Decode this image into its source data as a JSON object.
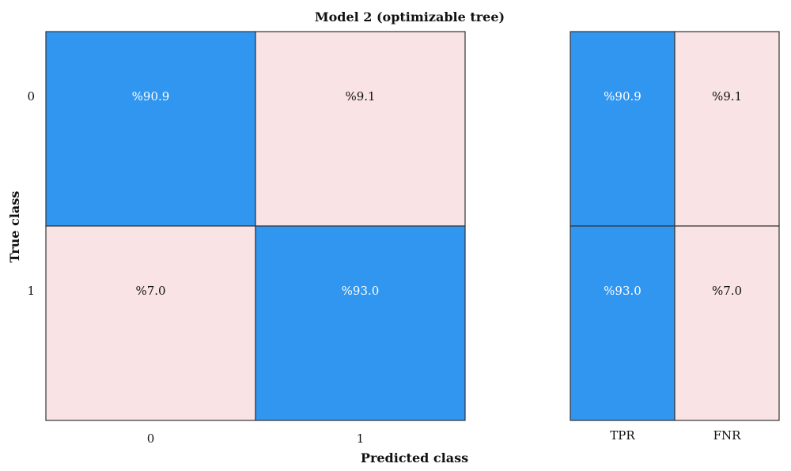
{
  "chart_data": {
    "type": "heatmap",
    "title": "Model 2 (optimizable tree)",
    "xlabel": "Predicted class",
    "ylabel": "True class",
    "row_labels": [
      "0",
      "1"
    ],
    "col_labels": [
      "0",
      "1"
    ],
    "cells": [
      [
        {
          "value": 90.9,
          "text": "%90.9"
        },
        {
          "value": 9.1,
          "text": "%9.1"
        }
      ],
      [
        {
          "value": 7.0,
          "text": "%7.0"
        },
        {
          "value": 93.0,
          "text": "%93.0"
        }
      ]
    ],
    "rates": {
      "col_labels": [
        "TPR",
        "FNR"
      ],
      "cells": [
        [
          {
            "value": 90.9,
            "text": "%90.9"
          },
          {
            "value": 9.1,
            "text": "%9.1"
          }
        ],
        [
          {
            "value": 93.0,
            "text": "%93.0"
          },
          {
            "value": 7.0,
            "text": "%7.0"
          }
        ]
      ]
    },
    "colors": {
      "high": "#3196f0",
      "low": "#f9e3e4",
      "text_on_high": "#ffffff",
      "text_on_low": "#111111",
      "border": "#333333"
    }
  }
}
